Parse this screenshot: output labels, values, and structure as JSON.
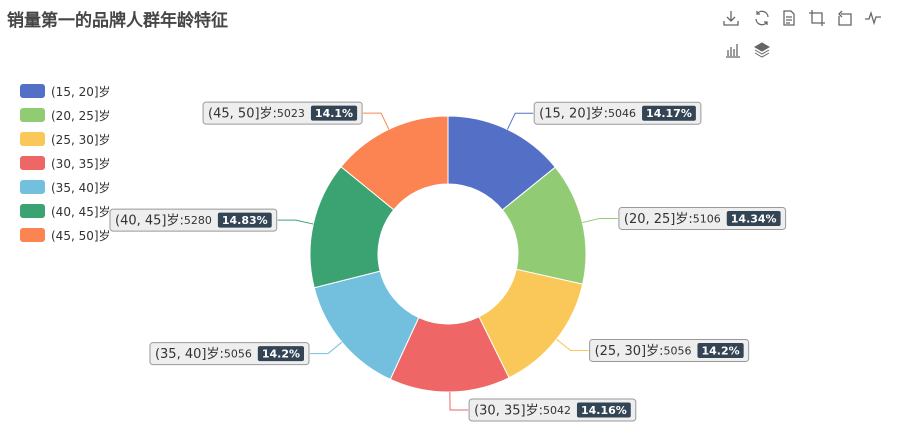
{
  "title": "销量第一的品牌人群年龄特征",
  "toolbox": [
    {
      "name": "download-icon",
      "label": "下载"
    },
    {
      "name": "refresh-icon",
      "label": "还原"
    },
    {
      "name": "data-view-icon",
      "label": "数据视图"
    },
    {
      "name": "zoom-icon",
      "label": "区域缩放"
    },
    {
      "name": "zoom-reset-icon",
      "label": "区域缩放还原"
    },
    {
      "name": "line-chart-icon",
      "label": "折线图"
    },
    {
      "name": "bar-chart-icon",
      "label": "柱状图"
    },
    {
      "name": "stack-icon",
      "label": "堆叠"
    }
  ],
  "chart_data": {
    "type": "pie",
    "variant": "donut",
    "title": "销量第一的品牌人群年龄特征",
    "legend_position": "left",
    "categories": [
      "(15, 20]岁",
      "(20, 25]岁",
      "(25, 30]岁",
      "(30, 35]岁",
      "(35, 40]岁",
      "(40, 45]岁",
      "(45, 50]岁"
    ],
    "values": [
      5046,
      5106,
      5056,
      5042,
      5056,
      5280,
      5023
    ],
    "percent_labels": [
      "14.17%",
      "14.34%",
      "14.2%",
      "14.16%",
      "14.2%",
      "14.83%",
      "14.1%"
    ],
    "colors": [
      "#5470c6",
      "#91cc75",
      "#fac858",
      "#ee6666",
      "#73c0de",
      "#3ba272",
      "#fc8452"
    ]
  }
}
